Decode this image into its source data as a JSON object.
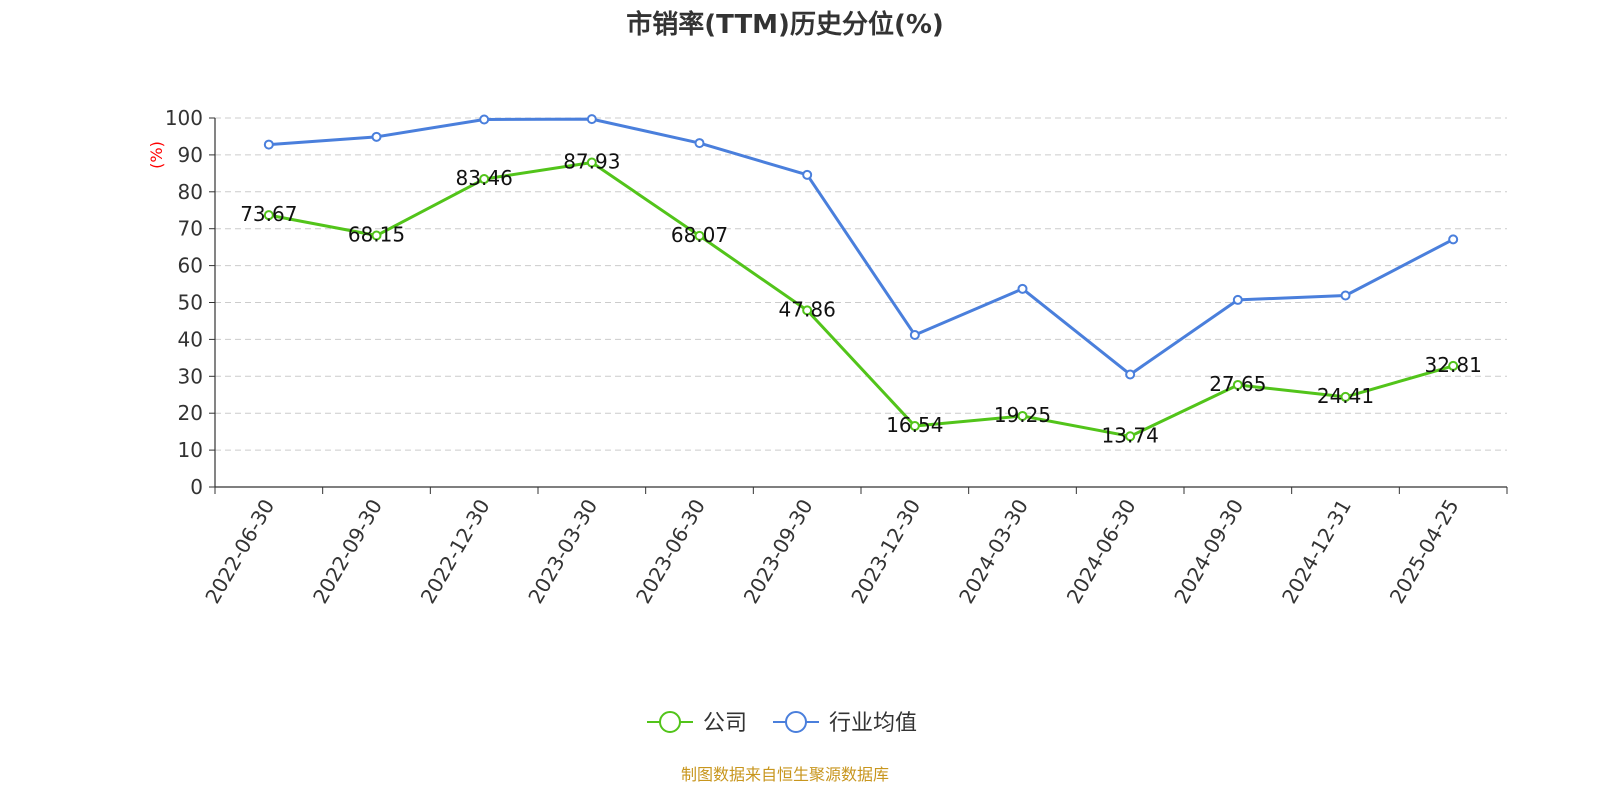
{
  "chart_data": {
    "type": "line",
    "title": "市销率(TTM)历史分位(%)",
    "ylabel": "(%)",
    "xlabel": "",
    "ylim": [
      0,
      100
    ],
    "y_ticks": [
      "0",
      "10",
      "20",
      "30",
      "40",
      "50",
      "60",
      "70",
      "80",
      "90",
      "100"
    ],
    "grid": "horizontal dashed",
    "legend_position": "bottom",
    "categories": [
      "2022-06-30",
      "2022-09-30",
      "2022-12-30",
      "2023-03-30",
      "2023-06-30",
      "2023-09-30",
      "2023-12-30",
      "2024-03-30",
      "2024-06-30",
      "2024-09-30",
      "2024-12-31",
      "2025-04-25"
    ],
    "series": [
      {
        "name": "公司",
        "color": "#52c41a",
        "values": [
          73.67,
          68.15,
          83.46,
          87.93,
          68.07,
          47.86,
          16.54,
          19.25,
          13.74,
          27.65,
          24.41,
          32.81
        ],
        "labels": [
          "73.67",
          "68.15",
          "83.46",
          "87.93",
          "68.07",
          "47.86",
          "16.54",
          "19.25",
          "13.74",
          "27.65",
          "24.41",
          "32.81"
        ]
      },
      {
        "name": "行业均值",
        "color": "#4a7fdc",
        "values": [
          92.8,
          94.9,
          99.6,
          99.7,
          93.2,
          84.6,
          41.2,
          53.7,
          30.5,
          50.7,
          51.9,
          67.1
        ]
      }
    ],
    "source": "制图数据来自恒生聚源数据库"
  }
}
